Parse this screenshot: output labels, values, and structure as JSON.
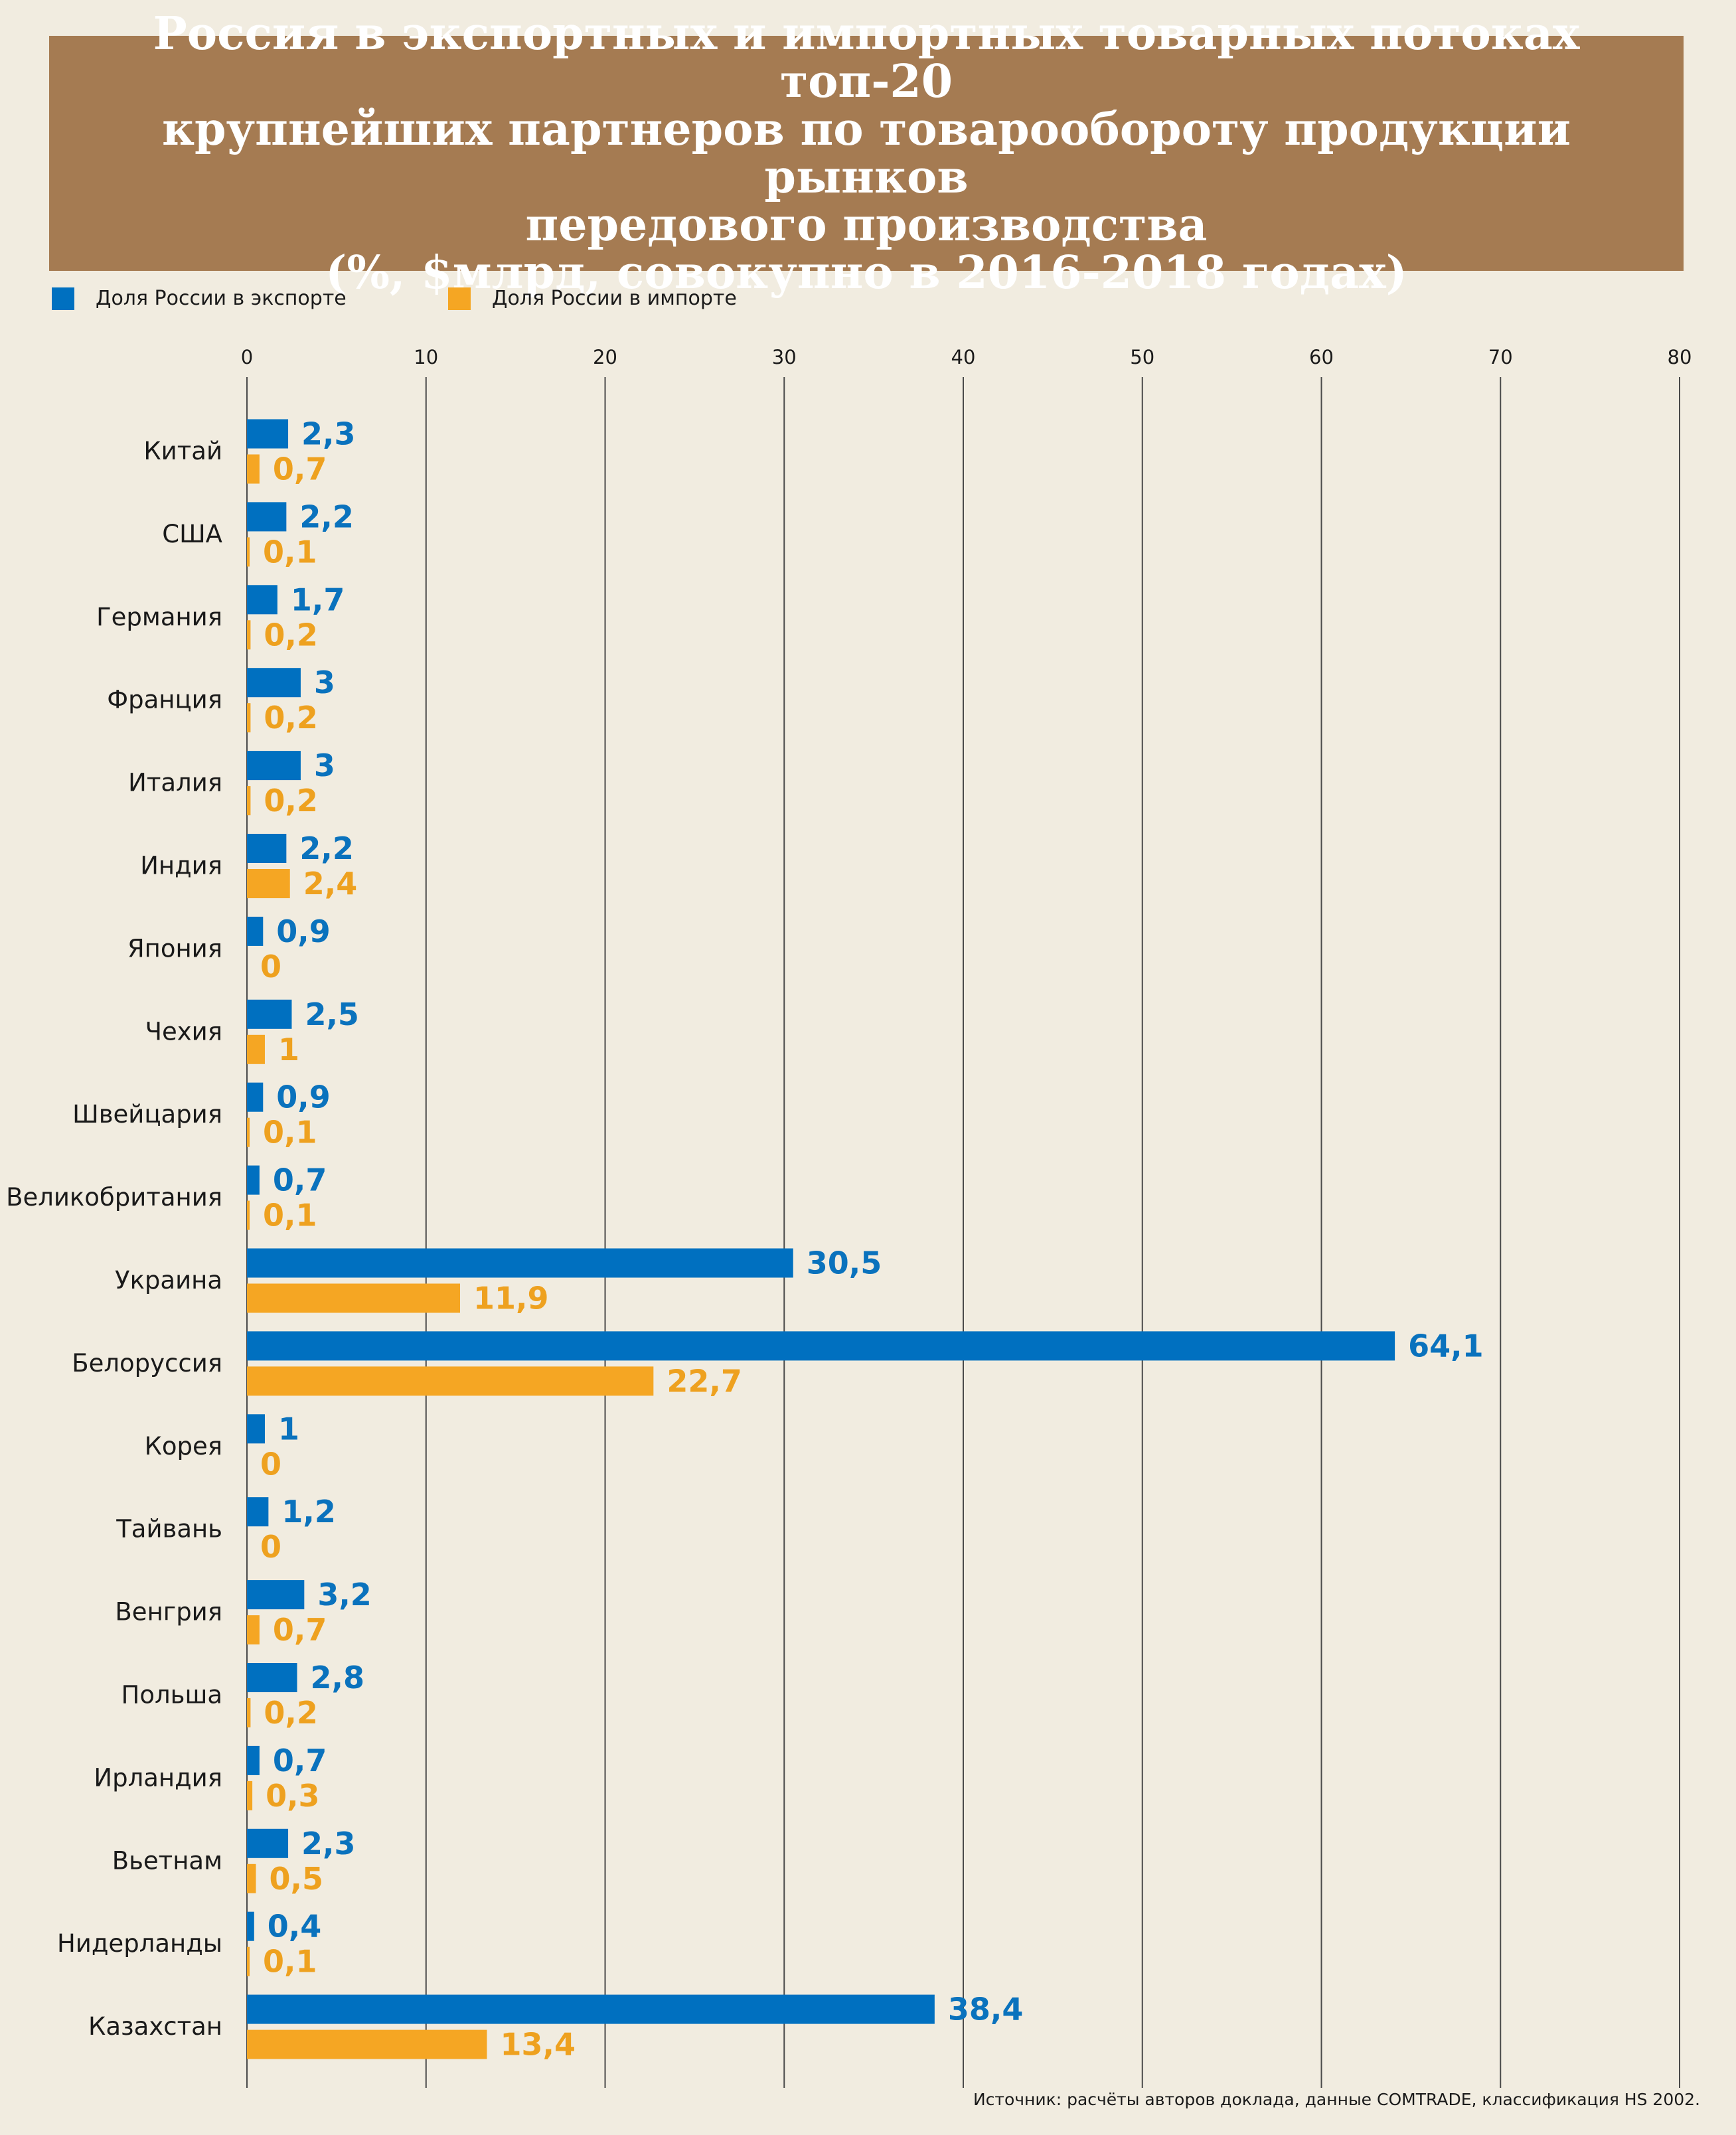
{
  "title": "Россия в экспортных и импортных товарных потоках топ-20\nкрупнейших партнеров по товарообороту продукции рынков\nпередового производства\n(%, $млрд, совокупно в 2016-2018 годах)",
  "legend": [
    {
      "label": "Доля России в экспорте",
      "color": "#0070c0"
    },
    {
      "label": "Доля России в импорте",
      "color": "#f5a623"
    }
  ],
  "source": "Источник: расчёты авторов доклада, данные COMTRADE, классификация HS 2002.",
  "chart_data": {
    "type": "bar",
    "orientation": "horizontal",
    "categories": [
      "Китай",
      "США",
      "Германия",
      "Франция",
      "Италия",
      "Индия",
      "Япония",
      "Чехия",
      "Швейцария",
      "Великобритания",
      "Украина",
      "Белоруссия",
      "Корея",
      "Тайвань",
      "Венгрия",
      "Польша",
      "Ирландия",
      "Вьетнам",
      "Нидерланды",
      "Казахстан"
    ],
    "series": [
      {
        "name": "Доля России в экспорте",
        "color": "#0070c0",
        "label_color": "#0a72bd",
        "values": [
          2.3,
          2.2,
          1.7,
          3,
          3,
          2.2,
          0.9,
          2.5,
          0.9,
          0.7,
          30.5,
          64.1,
          1,
          1.2,
          3.2,
          2.8,
          0.7,
          2.3,
          0.4,
          38.4
        ],
        "labels": [
          "2,3",
          "2,2",
          "1,7",
          "3",
          "3",
          "2,2",
          "0,9",
          "2,5",
          "0,9",
          "0,7",
          "30,5",
          "64,1",
          "1",
          "1,2",
          "3,2",
          "2,8",
          "0,7",
          "2,3",
          "0,4",
          "38,4"
        ]
      },
      {
        "name": "Доля России в импорте",
        "color": "#f5a623",
        "label_color": "#eea11f",
        "values": [
          0.7,
          0.1,
          0.2,
          0.2,
          0.2,
          2.4,
          0,
          1,
          0.1,
          0.1,
          11.9,
          22.7,
          0,
          0,
          0.7,
          0.2,
          0.3,
          0.5,
          0.1,
          13.4
        ],
        "labels": [
          "0,7",
          "0,1",
          "0,2",
          "0,2",
          "0,2",
          "2,4",
          "0",
          "1",
          "0,1",
          "0,1",
          "11,9",
          "22,7",
          "0",
          "0",
          "0,7",
          "0,2",
          "0,3",
          "0,5",
          "0,1",
          "13,4"
        ]
      }
    ],
    "x_ticks": [
      0,
      10,
      20,
      30,
      40,
      50,
      60,
      70,
      80
    ],
    "xlim": [
      0,
      80
    ],
    "grid": true,
    "legend_position": "top-left"
  }
}
